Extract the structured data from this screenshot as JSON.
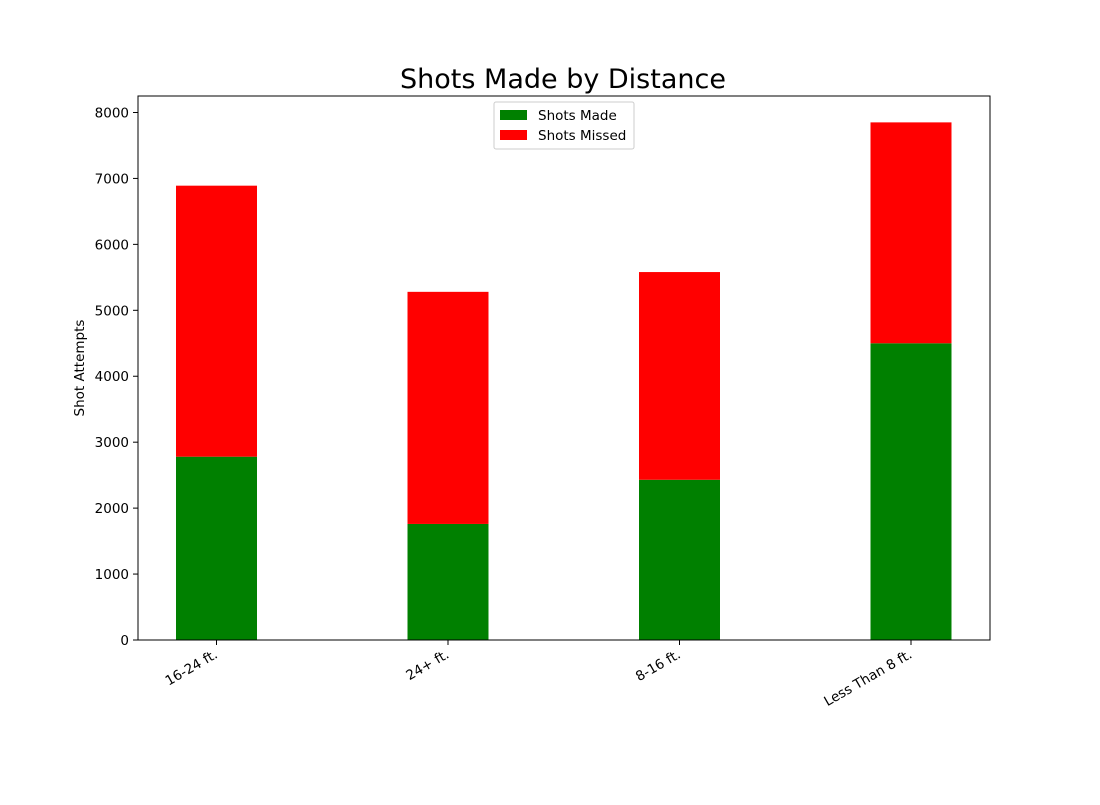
{
  "chart_data": {
    "type": "bar",
    "stacked": true,
    "title": "Shots Made by Distance",
    "xlabel": "",
    "ylabel": "Shot Attempts",
    "categories": [
      "16-24 ft.",
      "24+ ft.",
      "8-16 ft.",
      "Less Than 8 ft."
    ],
    "series": [
      {
        "name": "Shots Made",
        "color": "#008000",
        "values": [
          2780,
          1760,
          2430,
          4500
        ]
      },
      {
        "name": "Shots Missed",
        "color": "#ff0000",
        "values": [
          4110,
          3520,
          3150,
          3350
        ]
      }
    ],
    "ylim": [
      0,
      8250
    ],
    "yticks": [
      0,
      1000,
      2000,
      3000,
      4000,
      5000,
      6000,
      7000,
      8000
    ],
    "grid": false,
    "legend_position": "top-center"
  }
}
